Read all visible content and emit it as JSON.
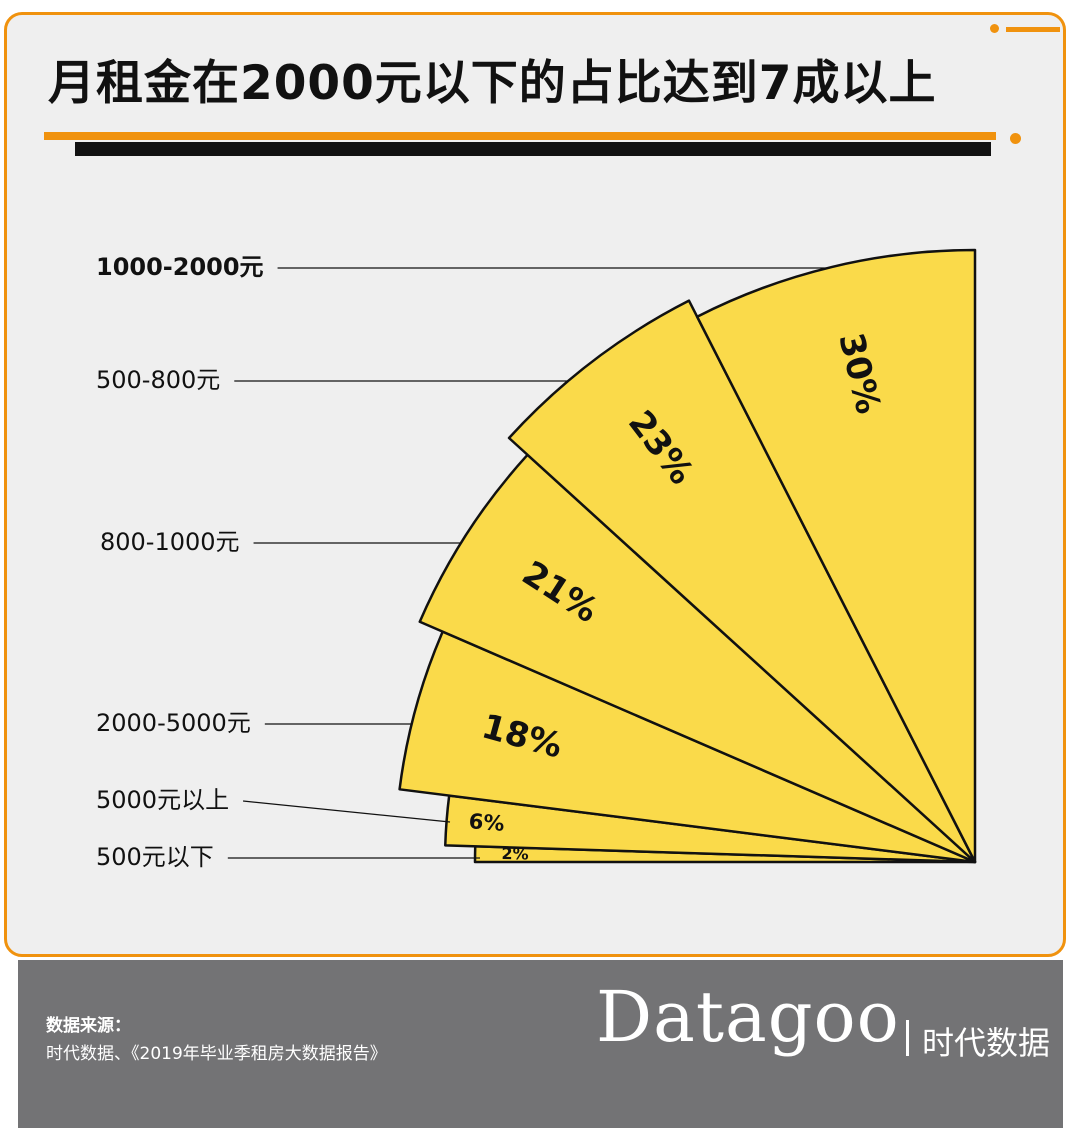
{
  "header": {
    "title": "月租金在2000元以下的占比达到7成以上"
  },
  "colors": {
    "accent": "#f0920e",
    "slice_fill": "#fada4a",
    "slice_stroke": "#111111",
    "background": "#efefef",
    "footer": "#737375"
  },
  "chart_data": {
    "type": "pie",
    "variant": "quarter-fan",
    "slices": [
      {
        "label": "500元以下",
        "value": 2,
        "value_label": "2%"
      },
      {
        "label": "5000元以上",
        "value": 6,
        "value_label": "6%"
      },
      {
        "label": "2000-5000元",
        "value": 18,
        "value_label": "18%"
      },
      {
        "label": "800-1000元",
        "value": 21,
        "value_label": "21%"
      },
      {
        "label": "500-800元",
        "value": 23,
        "value_label": "23%"
      },
      {
        "label": "1000-2000元",
        "value": 30,
        "value_label": "30%",
        "emphasized": true
      }
    ]
  },
  "footer": {
    "source_label": "数据来源：",
    "source_text": "时代数据、《2019年毕业季租房大数据报告》",
    "brand": "Datagoo",
    "brand_cn": "时代数据"
  }
}
